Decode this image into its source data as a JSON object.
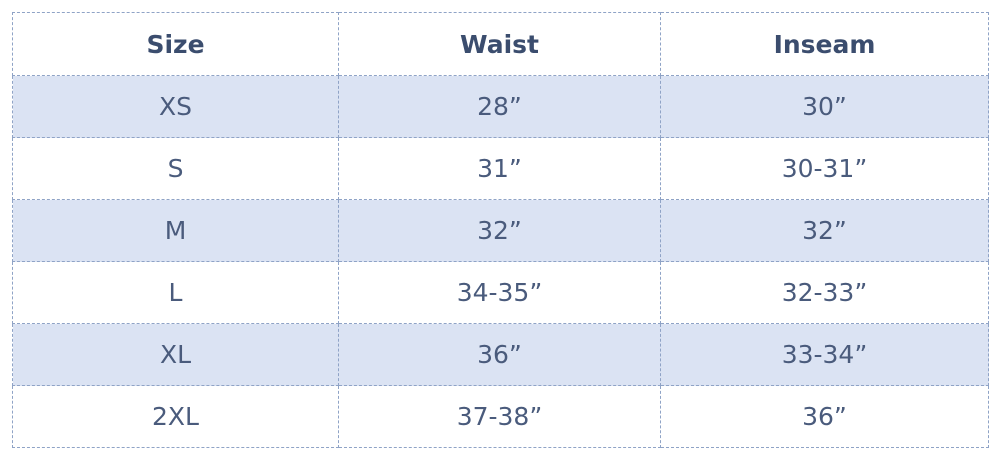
{
  "table": {
    "header": [
      "Size",
      "Waist",
      "Inseam"
    ],
    "rows": [
      [
        "XS",
        "28”",
        "30”"
      ],
      [
        "S",
        "31”",
        "30-31”"
      ],
      [
        "M",
        "32”",
        "32”"
      ],
      [
        "L",
        "34-35”",
        "32-33”"
      ],
      [
        "XL",
        "36”",
        "33-34”"
      ],
      [
        "2XL",
        "37-38”",
        "36”"
      ]
    ]
  }
}
